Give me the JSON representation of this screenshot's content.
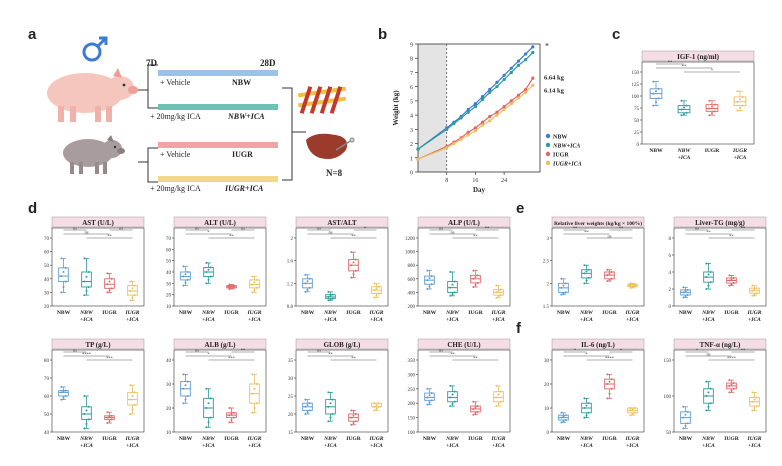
{
  "panels": {
    "a": "a",
    "b": "b",
    "c": "c",
    "d": "d",
    "e": "e",
    "f": "f"
  },
  "colors": {
    "nbw": "#5b9bd5",
    "nbw_ica": "#2e9a9a",
    "iugr": "#e06666",
    "iugr_ica": "#e8c060",
    "title_bg": "#f4dde4"
  },
  "groups": [
    "NBW",
    "NBW\n+ICA",
    "IUGR",
    "IUGR\n+ICA"
  ],
  "design": {
    "day_start": "7D",
    "day_end": "28D",
    "rows": [
      {
        "treat": "+ Vehicle",
        "group": "NBW"
      },
      {
        "treat": "+ 20mg/kg ICA",
        "group": "NBW+ICA"
      },
      {
        "treat": "+ Vehicle",
        "group": "IUGR"
      },
      {
        "treat": "+ 20mg/kg ICA",
        "group": "IUGR+ICA"
      }
    ],
    "n": "N=8"
  },
  "chart_data": [
    {
      "id": "b",
      "type": "line",
      "xlabel": "Day",
      "ylabel": "Weight (kg)",
      "ylim": [
        0,
        9
      ],
      "yticks": [
        0,
        1,
        2,
        3,
        4,
        5,
        6,
        7,
        8,
        9
      ],
      "xticks": [
        8,
        16,
        24
      ],
      "xlim": [
        0,
        34
      ],
      "x": [
        0,
        8,
        10,
        12,
        14,
        16,
        18,
        20,
        22,
        24,
        26,
        28,
        30,
        32
      ],
      "series": [
        {
          "name": "NBW",
          "color": "#3a7bd5",
          "values": [
            1.6,
            3.1,
            3.5,
            3.9,
            4.4,
            4.8,
            5.3,
            5.8,
            6.3,
            6.8,
            7.3,
            7.8,
            8.3,
            8.8
          ]
        },
        {
          "name": "NBW+ICA",
          "color": "#2e9a9a",
          "values": [
            1.6,
            3.0,
            3.4,
            3.8,
            4.2,
            4.6,
            5.1,
            5.6,
            6.0,
            6.5,
            7.0,
            7.5,
            7.9,
            8.4
          ]
        },
        {
          "name": "IUGR",
          "color": "#e06666",
          "values": [
            0.9,
            1.8,
            2.1,
            2.4,
            2.8,
            3.1,
            3.5,
            3.9,
            4.2,
            4.6,
            5.0,
            5.4,
            5.8,
            6.6
          ]
        },
        {
          "name": "IUGR+ICA",
          "color": "#e8c060",
          "values": [
            0.9,
            1.7,
            2.0,
            2.3,
            2.6,
            2.9,
            3.3,
            3.6,
            4.0,
            4.4,
            4.8,
            5.2,
            5.6,
            6.1
          ]
        }
      ],
      "annotations": [
        "6.64 kg",
        "6.14 kg",
        "*"
      ]
    },
    {
      "id": "c",
      "title": "IGF-1 (ng/ml)",
      "type": "box",
      "ylim": [
        0,
        150
      ],
      "yticks": [
        0,
        25,
        50,
        75,
        100,
        125,
        150
      ],
      "boxes": [
        [
          80,
          95,
          105,
          115,
          130
        ],
        [
          60,
          65,
          72,
          80,
          90
        ],
        [
          60,
          68,
          74,
          82,
          90
        ],
        [
          70,
          80,
          88,
          98,
          110
        ]
      ],
      "sig": [
        "**",
        "**",
        "*"
      ]
    },
    {
      "id": "d1",
      "title": "AST (U/L)",
      "type": "box",
      "ylim": [
        20,
        70
      ],
      "yticks": [
        20,
        30,
        40,
        50,
        60,
        70
      ],
      "boxes": [
        [
          30,
          38,
          42,
          48,
          55
        ],
        [
          28,
          34,
          38,
          45,
          55
        ],
        [
          30,
          33,
          36,
          40,
          44
        ],
        [
          24,
          28,
          31,
          35,
          38
        ]
      ],
      "sig": [
        "ns",
        "ns",
        "**",
        "ns"
      ]
    },
    {
      "id": "d2",
      "title": "ALT (U/L)",
      "type": "box",
      "ylim": [
        10,
        70
      ],
      "yticks": [
        10,
        20,
        30,
        40,
        50,
        60,
        70
      ],
      "boxes": [
        [
          28,
          33,
          36,
          40,
          45
        ],
        [
          30,
          36,
          40,
          44,
          48
        ],
        [
          25,
          26,
          27,
          28,
          29
        ],
        [
          22,
          26,
          29,
          33,
          36
        ]
      ],
      "sig": [
        "ns",
        "*",
        "**",
        "ns"
      ]
    },
    {
      "id": "d3",
      "title": "AST/ALT",
      "type": "box",
      "ylim": [
        0.8,
        2.0
      ],
      "yticks": [
        0.8,
        1.2,
        1.6,
        2.0
      ],
      "boxes": [
        [
          1.05,
          1.12,
          1.2,
          1.28,
          1.35
        ],
        [
          0.9,
          0.93,
          0.96,
          1.0,
          1.05
        ],
        [
          1.3,
          1.42,
          1.52,
          1.62,
          1.75
        ],
        [
          0.95,
          1.02,
          1.08,
          1.14,
          1.2
        ]
      ],
      "sig": [
        "ns",
        "ns",
        "**",
        "*"
      ]
    },
    {
      "id": "d4",
      "title": "ALP (U/L)",
      "type": "box",
      "ylim": [
        200,
        1200
      ],
      "yticks": [
        200,
        400,
        600,
        800,
        1000,
        1200
      ],
      "boxes": [
        [
          450,
          520,
          580,
          640,
          720
        ],
        [
          350,
          400,
          470,
          560,
          700
        ],
        [
          480,
          540,
          600,
          650,
          720
        ],
        [
          320,
          360,
          400,
          440,
          500
        ]
      ],
      "sig": [
        "ns",
        "ns",
        "**",
        "**"
      ]
    },
    {
      "id": "d5",
      "title": "TP (g/L)",
      "type": "box",
      "ylim": [
        40,
        80
      ],
      "yticks": [
        40,
        50,
        60,
        70,
        80
      ],
      "boxes": [
        [
          58,
          60,
          62,
          63,
          65
        ],
        [
          42,
          47,
          50,
          54,
          60
        ],
        [
          45,
          47,
          48,
          49,
          51
        ],
        [
          50,
          55,
          58,
          62,
          66
        ]
      ],
      "sig": [
        "ns",
        "****",
        "***"
      ]
    },
    {
      "id": "d6",
      "title": "ALB (g/L)",
      "type": "box",
      "ylim": [
        10,
        40
      ],
      "yticks": [
        10,
        20,
        30,
        40
      ],
      "boxes": [
        [
          22,
          25,
          28,
          31,
          34
        ],
        [
          12,
          16,
          20,
          24,
          28
        ],
        [
          14,
          16,
          17,
          18,
          20
        ],
        [
          18,
          22,
          26,
          30,
          34
        ]
      ],
      "sig": [
        "ns",
        "*",
        "***",
        "**"
      ]
    },
    {
      "id": "d7",
      "title": "GLOB (g/L)",
      "type": "box",
      "ylim": [
        15,
        35
      ],
      "yticks": [
        15,
        20,
        25,
        30,
        35
      ],
      "boxes": [
        [
          20,
          21,
          22,
          23,
          24
        ],
        [
          18,
          20,
          22,
          24,
          26
        ],
        [
          17,
          18,
          19,
          20,
          21
        ],
        [
          21,
          22,
          22,
          23,
          23
        ]
      ],
      "sig": [
        "ns",
        "**",
        "**"
      ]
    },
    {
      "id": "d8",
      "title": "CHE (U/L)",
      "type": "box",
      "ylim": [
        100,
        350
      ],
      "yticks": [
        100,
        150,
        200,
        250,
        300,
        350
      ],
      "boxes": [
        [
          195,
          210,
          220,
          235,
          250
        ],
        [
          190,
          205,
          220,
          240,
          260
        ],
        [
          160,
          170,
          180,
          190,
          205
        ],
        [
          190,
          205,
          220,
          240,
          260
        ]
      ],
      "sig": [
        "ns",
        "**",
        "**"
      ]
    },
    {
      "id": "e1",
      "title": "Relative liver weights (kg/kg × 100%)",
      "type": "box",
      "ylim": [
        1.5,
        3.0
      ],
      "yticks": [
        1.5,
        2.0,
        2.5,
        3.0
      ],
      "boxes": [
        [
          1.75,
          1.8,
          1.9,
          2.0,
          2.1
        ],
        [
          2.0,
          2.12,
          2.22,
          2.3,
          2.4
        ],
        [
          2.05,
          2.1,
          2.18,
          2.25,
          2.3
        ],
        [
          1.9,
          1.93,
          1.96,
          1.98,
          2.0
        ]
      ],
      "sig": [
        "**",
        "**",
        "ns",
        "**"
      ]
    },
    {
      "id": "e2",
      "title": "Liver-TG (mg/g)",
      "type": "box",
      "ylim": [
        0,
        8
      ],
      "yticks": [
        0,
        2,
        4,
        6,
        8
      ],
      "boxes": [
        [
          1.0,
          1.3,
          1.6,
          1.9,
          2.2
        ],
        [
          2.0,
          2.8,
          3.4,
          4.0,
          5.0
        ],
        [
          2.4,
          2.7,
          3.0,
          3.3,
          3.6
        ],
        [
          1.2,
          1.5,
          1.8,
          2.1,
          2.4
        ]
      ],
      "sig": [
        "ns",
        "**",
        "**",
        "**"
      ]
    },
    {
      "id": "f1",
      "title": "IL-6 (ng/L)",
      "type": "box",
      "ylim": [
        0,
        30
      ],
      "yticks": [
        0,
        10,
        20,
        30
      ],
      "boxes": [
        [
          4,
          5,
          6,
          7,
          8
        ],
        [
          6,
          8,
          10,
          12,
          14
        ],
        [
          14,
          18,
          20,
          22,
          24
        ],
        [
          7,
          8,
          9,
          10,
          10
        ]
      ],
      "sig": [
        "*",
        "*",
        "****",
        "*"
      ]
    },
    {
      "id": "f2",
      "title": "TNF-α (ng/L)",
      "type": "box",
      "ylim": [
        50,
        150
      ],
      "yticks": [
        50,
        100,
        150
      ],
      "boxes": [
        [
          55,
          62,
          70,
          78,
          85
        ],
        [
          80,
          90,
          100,
          110,
          120
        ],
        [
          105,
          110,
          114,
          118,
          122
        ],
        [
          80,
          86,
          92,
          98,
          105
        ]
      ],
      "sig": [
        "*",
        "ns",
        "****",
        "**"
      ]
    }
  ]
}
